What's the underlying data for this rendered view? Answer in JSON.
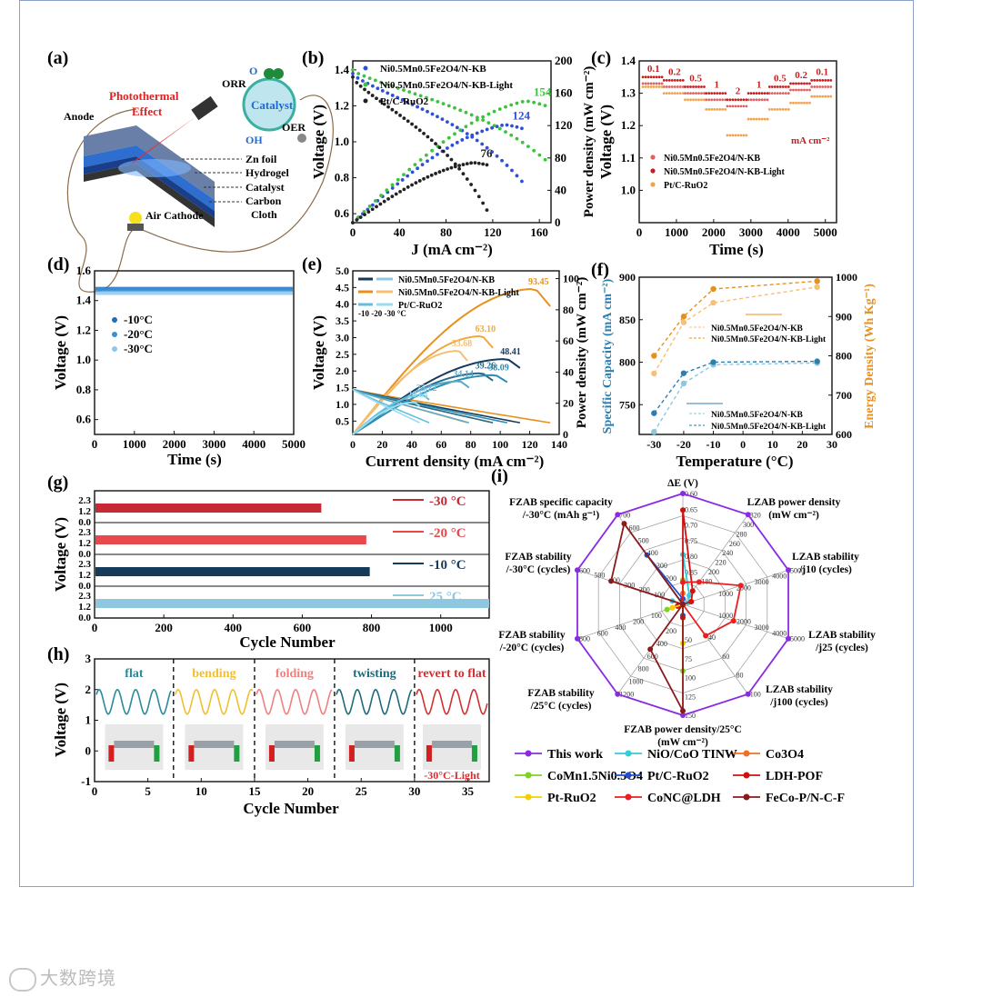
{
  "panels": {
    "a": {
      "label": "(a)",
      "texts": [
        "Photothermal",
        "Effect",
        "ORR",
        "OER",
        "Catalyst",
        "O",
        "2",
        "OH",
        "−",
        "Anode",
        "Zn foil",
        "Hydrogel",
        "Catalyst",
        "Carbon",
        "Cloth",
        "Air Cathode"
      ]
    },
    "b": {
      "label": "(b)"
    },
    "c": {
      "label": "(c)"
    },
    "d": {
      "label": "(d)"
    },
    "e": {
      "label": "(e)"
    },
    "f": {
      "label": "(f)"
    },
    "g": {
      "label": "(g)"
    },
    "h": {
      "label": "(h)"
    },
    "i": {
      "label": "(i)"
    }
  },
  "watermark": "大数跨境",
  "chart_data": [
    {
      "id": "b",
      "type": "line",
      "xlabel": "J (mA cm⁻²)",
      "ylabel": "Voltage (V)",
      "y2label": "Power density (mW cm⁻²)",
      "xlim": [
        0,
        170
      ],
      "xticks": [
        0,
        40,
        80,
        120,
        160
      ],
      "ylim": [
        0.55,
        1.45
      ],
      "yticks": [
        0.6,
        0.8,
        1.0,
        1.2,
        1.4
      ],
      "y2lim": [
        0,
        200
      ],
      "y2ticks": [
        0,
        40,
        80,
        120,
        160,
        200
      ],
      "legend": [
        "Ni0.5Mn0.5Fe2O4/N-KB",
        "Ni0.5Mn0.5Fe2O4/N-KB-Light",
        "Pt/C-RuO2"
      ],
      "colors": [
        "#2f4fd6",
        "#3cc23c",
        "#222222"
      ],
      "peak_labels": [
        "124",
        "154",
        "76"
      ],
      "series": [
        {
          "name": "Ni0.5Mn0.5Fe2O4/N-KB",
          "jmax": 145,
          "v0": 1.38,
          "vend": 0.78,
          "pmax": 124
        },
        {
          "name": "Ni0.5Mn0.5Fe2O4/N-KB-Light",
          "jmax": 165,
          "v0": 1.4,
          "vend": 0.9,
          "pmax": 154
        },
        {
          "name": "Pt/C-RuO2",
          "jmax": 115,
          "v0": 1.36,
          "vend": 0.62,
          "pmax": 76
        }
      ]
    },
    {
      "id": "c",
      "type": "line",
      "xlabel": "Time (s)",
      "ylabel": "Voltage (V)",
      "xlim": [
        0,
        5300
      ],
      "xticks": [
        0,
        1000,
        2000,
        3000,
        4000,
        5000
      ],
      "ylim": [
        0.9,
        1.4
      ],
      "yticks": [
        1.0,
        1.1,
        1.2,
        1.3,
        1.4
      ],
      "unit": "mA cm⁻²",
      "current_labels": [
        "0.1",
        "0.2",
        "0.5",
        "1",
        "2",
        "1",
        "0.5",
        "0.2",
        "0.1"
      ],
      "legend": [
        "Ni0.5Mn0.5Fe2O4/N-KB",
        "Ni0.5Mn0.5Fe2O4/N-KB-Light",
        "Pt/C-RuO2"
      ],
      "colors": [
        "#e06060",
        "#c81e1e",
        "#f2a24a"
      ],
      "series": [
        {
          "name": "Ni0.5Mn0.5Fe2O4/N-KB",
          "values": [
            1.33,
            1.32,
            1.3,
            1.28,
            1.26,
            1.28,
            1.3,
            1.31,
            1.32
          ]
        },
        {
          "name": "Ni0.5Mn0.5Fe2O4/N-KB-Light",
          "values": [
            1.35,
            1.34,
            1.32,
            1.3,
            1.28,
            1.3,
            1.32,
            1.33,
            1.34
          ]
        },
        {
          "name": "Pt/C-RuO2",
          "values": [
            1.32,
            1.3,
            1.28,
            1.25,
            1.17,
            1.22,
            1.25,
            1.27,
            1.29
          ]
        }
      ]
    },
    {
      "id": "d",
      "type": "line",
      "xlabel": "Time (s)",
      "ylabel": "Voltage (V)",
      "xlim": [
        0,
        5000
      ],
      "xticks": [
        0,
        1000,
        2000,
        3000,
        4000,
        5000
      ],
      "ylim": [
        0.5,
        1.6
      ],
      "yticks": [
        0.6,
        0.8,
        1.0,
        1.2,
        1.4,
        1.6
      ],
      "legend": [
        "-10°C",
        "-20°C",
        "-30°C"
      ],
      "colors": [
        "#1f6fbf",
        "#3a8fd6",
        "#8cc8ee"
      ],
      "series": [
        {
          "name": "-10°C",
          "value": 1.48
        },
        {
          "name": "-20°C",
          "value": 1.47
        },
        {
          "name": "-30°C",
          "value": 1.45
        }
      ]
    },
    {
      "id": "e",
      "type": "line",
      "xlabel": "Current density (mA cm⁻²)",
      "ylabel": "Voltage (V)",
      "y2label": "Power density (mW cm⁻²)",
      "xlim": [
        0,
        140
      ],
      "xticks": [
        0,
        20,
        40,
        60,
        80,
        100,
        120,
        140
      ],
      "ylim": [
        0.1,
        5.0
      ],
      "yticks": [
        0.5,
        1.0,
        1.5,
        2.0,
        2.5,
        3.0,
        3.5,
        4.0,
        4.5,
        5.0
      ],
      "y2lim": [
        0,
        105
      ],
      "y2ticks": [
        0,
        20,
        40,
        60,
        80,
        100
      ],
      "legend": [
        "Ni0.5Mn0.5Fe2O4/N-KB",
        "Ni0.5Mn0.5Fe2O4/N-KB-Light",
        "Pt/C-RuO2"
      ],
      "temps_note": "-10 -20 -30 °C",
      "peak_labels": [
        {
          "text": "93.45",
          "color": "#e8901c",
          "x": 124,
          "p": 93.45
        },
        {
          "text": "63.10",
          "color": "#f0a840",
          "x": 88,
          "p": 63.1
        },
        {
          "text": "53.68",
          "color": "#f6c070",
          "x": 72,
          "p": 53.68
        },
        {
          "text": "48.41",
          "color": "#163a5a",
          "x": 105,
          "p": 48.41
        },
        {
          "text": "39.26",
          "color": "#2a6a8a",
          "x": 88,
          "p": 39.26
        },
        {
          "text": "38.09",
          "color": "#2b8cb4",
          "x": 97,
          "p": 38.09
        },
        {
          "text": "34.14",
          "color": "#5aa8c8",
          "x": 73,
          "p": 34.14
        },
        {
          "text": "25.22",
          "color": "#60c0dc",
          "x": 48,
          "p": 25.22
        },
        {
          "text": "20.63",
          "color": "#9adcf0",
          "x": 42,
          "p": 20.63
        }
      ]
    },
    {
      "id": "f",
      "type": "line",
      "xlabel": "Temperature (°C)",
      "ylabel": "Specific Capacity (mA cm⁻²)",
      "y2label": "Energy Density (Wh Kg⁻¹)",
      "xlim": [
        -35,
        30
      ],
      "xticks": [
        -30,
        -20,
        -10,
        0,
        10,
        20,
        30
      ],
      "ylim": [
        715,
        900
      ],
      "yticks": [
        750,
        800,
        850,
        900
      ],
      "y2lim": [
        600,
        1000
      ],
      "y2ticks": [
        600,
        700,
        800,
        900,
        1000
      ],
      "x": [
        -30,
        -20,
        -10,
        25
      ],
      "series": [
        {
          "name": "Ni0.5Mn0.5Fe2O4/N-KB (capacity)",
          "axis": "left",
          "values": [
            718,
            775,
            797,
            799
          ],
          "color": "#8ec6e0"
        },
        {
          "name": "Ni0.5Mn0.5Fe2O4/N-KB-Light (capacity)",
          "axis": "left",
          "values": [
            740,
            787,
            800,
            801
          ],
          "color": "#2b7fb0"
        },
        {
          "name": "Ni0.5Mn0.5Fe2O4/N-KB (energy)",
          "axis": "right",
          "values": [
            755,
            885,
            935,
            975
          ],
          "color": "#f4c07a"
        },
        {
          "name": "Ni0.5Mn0.5Fe2O4/N-KB-Light (energy)",
          "axis": "right",
          "values": [
            800,
            900,
            970,
            990
          ],
          "color": "#e8901c"
        }
      ],
      "legend_top": [
        "Ni0.5Mn0.5Fe2O4/N-KB",
        "Ni0.5Mn0.5Fe2O4/N-KB-Light"
      ],
      "legend_bottom": [
        "Ni0.5Mn0.5Fe2O4/N-KB",
        "Ni0.5Mn0.5Fe2O4/N-KB-Light"
      ]
    },
    {
      "id": "g",
      "type": "line",
      "xlabel": "Cycle Number",
      "ylabel": "Voltage (V)",
      "xlim": [
        0,
        1140
      ],
      "xticks": [
        0,
        200,
        400,
        600,
        800,
        1000
      ],
      "yticks": [
        "2.3",
        "1.2",
        "0.0"
      ],
      "series": [
        {
          "name": "-30 °C",
          "end": 655,
          "color": "#c82a34"
        },
        {
          "name": "-20 °C",
          "end": 785,
          "color": "#e8484c"
        },
        {
          "name": "-10 °C",
          "end": 795,
          "color": "#163a5a"
        },
        {
          "name": "25 °C",
          "end": 1140,
          "color": "#8ec8e0"
        }
      ]
    },
    {
      "id": "h",
      "type": "line",
      "xlabel": "Cycle Number",
      "ylabel": "Voltage (V)",
      "xlim": [
        0,
        37
      ],
      "xticks": [
        0,
        5,
        10,
        15,
        20,
        25,
        30,
        35
      ],
      "ylim": [
        -1,
        3
      ],
      "yticks": [
        -1,
        0,
        1,
        2,
        3
      ],
      "segments": [
        {
          "label": "flat",
          "start": 0,
          "end": 7.4,
          "color": "#2a8a9a"
        },
        {
          "label": "bending",
          "start": 7.4,
          "end": 15,
          "color": "#f0c030"
        },
        {
          "label": "folding",
          "start": 15,
          "end": 22.5,
          "color": "#f08080"
        },
        {
          "label": "twisting",
          "start": 22.5,
          "end": 30,
          "color": "#1f6a7a"
        },
        {
          "label": "revert to flat",
          "start": 30,
          "end": 37,
          "color": "#d03030"
        }
      ],
      "note": "-30°C-Light"
    },
    {
      "id": "i",
      "type": "radar",
      "axes": [
        {
          "label": "ΔE (V)",
          "ticks": [
            "0.60",
            "0.65",
            "0.70",
            "0.75",
            "0.80",
            "0.85"
          ]
        },
        {
          "label": "LZAB power density (mW cm⁻²)",
          "ticks": [
            "320",
            "300",
            "280",
            "260",
            "240",
            "220",
            "200",
            "180"
          ]
        },
        {
          "label": "LZAB stability /j10 (cycles)",
          "ticks": [
            "5000",
            "4000",
            "3000",
            "2000",
            "1000"
          ]
        },
        {
          "label": "LZAB stability /j25 (cycles)",
          "ticks": [
            "5000",
            "4000",
            "3000",
            "2000",
            "1000"
          ]
        },
        {
          "label": "LZAB stability /j100 (cycles)",
          "ticks": [
            "100",
            "80",
            "60",
            "40"
          ]
        },
        {
          "label": "FZAB power density/25°C (mW cm⁻²)",
          "ticks": [
            "150",
            "125",
            "100",
            "75",
            "50"
          ]
        },
        {
          "label": "FZAB stability /25°C (cycles)",
          "ticks": [
            "1200",
            "1000",
            "800",
            "600",
            "400",
            "200"
          ]
        },
        {
          "label": "FZAB stability /-20°C (cycles)",
          "ticks": [
            "800",
            "600",
            "400",
            "200",
            "100"
          ]
        },
        {
          "label": "FZAB stability /-30°C (cycles)",
          "ticks": [
            "600",
            "500",
            "400",
            "300",
            "200",
            "100"
          ]
        },
        {
          "label": "FZAB specific capacity /-30°C (mAh g⁻¹)",
          "ticks": [
            "700",
            "600",
            "500",
            "400",
            "300",
            "200"
          ]
        }
      ],
      "series": [
        {
          "name": "This work",
          "color": "#8a2be2",
          "marker": "circle",
          "r": [
            1,
            1,
            1,
            1,
            1,
            1,
            1,
            1,
            1,
            1
          ]
        },
        {
          "name": "NiO/CoO TINW",
          "color": "#33ccd6",
          "marker": "triangle-up",
          "r": [
            0.45,
            0.1,
            0.05,
            0,
            0,
            0,
            0,
            0,
            0.1,
            0
          ]
        },
        {
          "name": "Co3O4",
          "color": "#f07020",
          "marker": "triangle-left",
          "r": [
            0.1,
            0,
            0,
            0,
            0,
            0,
            0,
            0.05,
            0,
            0
          ]
        },
        {
          "name": "CoMn1.5Ni0.5O4",
          "color": "#7ed321",
          "marker": "triangle-down",
          "r": [
            0.22,
            0,
            0,
            0,
            0,
            0.6,
            0,
            0.15,
            0,
            0
          ]
        },
        {
          "name": "Pt/C-RuO2",
          "color": "#1f4fd0",
          "marker": "circle",
          "r": [
            0.05,
            0,
            0,
            0,
            0,
            0.1,
            0,
            0,
            0,
            0.55
          ]
        },
        {
          "name": "LDH-POF",
          "color": "#d01010",
          "marker": "circle",
          "r": [
            0.85,
            0.15,
            0.08,
            0,
            0,
            0.12,
            0,
            0.05,
            0,
            0
          ]
        },
        {
          "name": "Pt-RuO2",
          "color": "#f5d000",
          "marker": "diamond",
          "r": [
            0,
            0,
            0,
            0,
            0,
            0.35,
            0,
            0.1,
            0,
            0
          ]
        },
        {
          "name": "CoNC@LDH",
          "color": "#e82020",
          "marker": "triangle-right",
          "r": [
            0.2,
            0.25,
            0.55,
            0.48,
            0.35,
            0,
            0,
            0,
            0,
            0
          ]
        },
        {
          "name": "FeCo-P/N-C-F",
          "color": "#8b1a1a",
          "marker": "star",
          "r": [
            0,
            0,
            0,
            0,
            0,
            0.96,
            0.5,
            0,
            0.68,
            0.9
          ]
        }
      ]
    }
  ]
}
